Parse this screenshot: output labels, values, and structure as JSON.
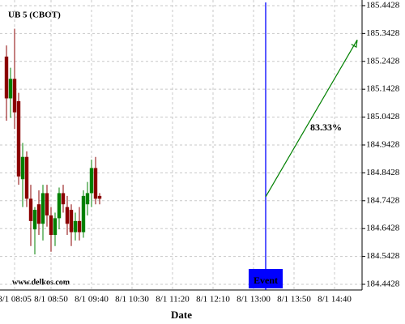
{
  "chart_data": {
    "type": "candlestick",
    "title": "UB 5 (CBOT)",
    "watermark": "www.delkos.com",
    "x_label": "Date",
    "x": [
      "8/1 07:55",
      "8/1 08:00",
      "8/1 08:05",
      "8/1 08:10",
      "8/1 08:15",
      "8/1 08:20",
      "8/1 08:25",
      "8/1 08:30",
      "8/1 08:35",
      "8/1 08:40",
      "8/1 08:45",
      "8/1 08:50",
      "8/1 08:55",
      "8/1 09:00",
      "8/1 09:05",
      "8/1 09:10",
      "8/1 09:15",
      "8/1 09:20",
      "8/1 09:25",
      "8/1 09:30",
      "8/1 09:35",
      "8/1 09:40",
      "8/1 09:45",
      "8/1 09:50"
    ],
    "open": [
      185.26,
      185.11,
      185.18,
      185.1,
      184.82,
      184.9,
      184.75,
      184.64,
      184.73,
      184.66,
      184.77,
      184.69,
      184.62,
      184.68,
      184.77,
      184.72,
      184.71,
      184.63,
      184.67,
      184.63,
      184.73,
      184.77,
      184.86,
      184.76
    ],
    "high": [
      185.3,
      185.22,
      185.36,
      185.13,
      184.95,
      184.92,
      184.8,
      184.72,
      184.78,
      184.8,
      184.8,
      184.72,
      184.7,
      184.79,
      184.8,
      184.76,
      184.73,
      184.7,
      184.72,
      184.78,
      184.81,
      184.89,
      184.9,
      184.77
    ],
    "low": [
      185.03,
      185.04,
      185.0,
      184.8,
      184.72,
      184.72,
      184.58,
      184.55,
      184.62,
      184.6,
      184.65,
      184.56,
      184.58,
      184.64,
      184.7,
      184.62,
      184.58,
      184.6,
      184.6,
      184.61,
      184.69,
      184.72,
      184.73,
      184.73
    ],
    "close": [
      185.11,
      185.18,
      185.06,
      184.83,
      184.9,
      184.75,
      184.67,
      184.71,
      184.66,
      184.77,
      184.69,
      184.62,
      184.68,
      184.77,
      184.73,
      184.66,
      184.63,
      184.67,
      184.63,
      184.76,
      184.77,
      184.86,
      184.75,
      184.75
    ],
    "up_color": "#008000",
    "down_color": "#8b0000",
    "xlim": [
      "8/1 07:47",
      "8/1 15:14"
    ],
    "xticks": [
      "8/1 08:05",
      "8/1 08:50",
      "8/1 09:40",
      "8/1 10:30",
      "8/1 11:20",
      "8/1 12:10",
      "8/1 13:00",
      "8/1 13:50",
      "8/1 14:40"
    ],
    "ylim": [
      184.4225,
      185.463
    ],
    "yticks": [
      184.4428,
      184.5428,
      184.6428,
      184.7428,
      184.8428,
      184.9428,
      185.0428,
      185.1428,
      185.2428,
      185.3428,
      185.4428
    ],
    "grid": true,
    "event": {
      "label": "Event",
      "x": "8/1 13:15",
      "color": "#0000ff"
    },
    "arrow": {
      "label": "83.33%",
      "x_start": "8/1 13:15",
      "y_start": 184.757,
      "x_end": "8/1 15:08",
      "y_end": 185.32,
      "color": "#008000"
    }
  }
}
